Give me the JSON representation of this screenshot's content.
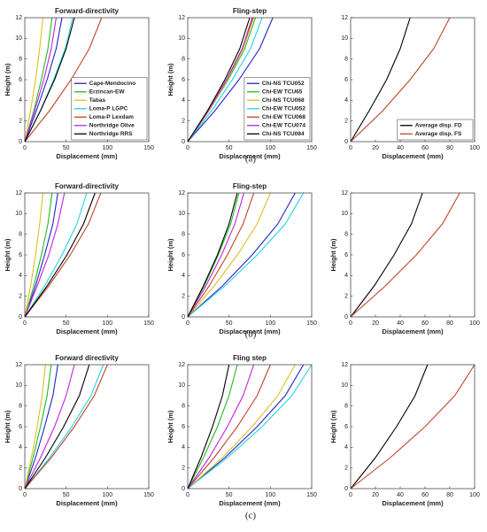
{
  "captions": [
    "(a)",
    "(b)",
    "(c)"
  ],
  "chart_data": [
    {
      "type": "line",
      "title": "Forward-directivity",
      "xlabel": "Displacement (mm)",
      "ylabel": "Height (m)",
      "xlim": [
        0,
        150
      ],
      "ylim": [
        0,
        12
      ],
      "xticks": [
        0,
        50,
        100,
        150
      ],
      "yticks": [
        0,
        2,
        4,
        6,
        8,
        10,
        12
      ],
      "legend": "lower right",
      "y": [
        0,
        3,
        6,
        9,
        12
      ],
      "series": [
        {
          "name": "Cape-Mendocino",
          "color": "#2323c8",
          "x": [
            0,
            14,
            27,
            38,
            45
          ]
        },
        {
          "name": "Erzincan-EW",
          "color": "#22bb22",
          "x": [
            0,
            11,
            20,
            28,
            33
          ]
        },
        {
          "name": "Tabas",
          "color": "#ddc022",
          "x": [
            0,
            7,
            13,
            18,
            22
          ]
        },
        {
          "name": "Loma-P LGPC",
          "color": "#22d4e4",
          "x": [
            0,
            19,
            35,
            49,
            58
          ]
        },
        {
          "name": "Loma-P Lexdam",
          "color": "#c04428",
          "x": [
            0,
            30,
            56,
            78,
            93
          ]
        },
        {
          "name": "Northridge Olive",
          "color": "#c022e0",
          "x": [
            0,
            12,
            23,
            32,
            38
          ]
        },
        {
          "name": "Northridge RRS",
          "color": "#000000",
          "x": [
            0,
            19,
            36,
            50,
            60
          ]
        }
      ]
    },
    {
      "type": "line",
      "title": "Fling-step",
      "xlabel": "Displacement (mm)",
      "ylabel": "Height (m)",
      "xlim": [
        0,
        150
      ],
      "ylim": [
        0,
        12
      ],
      "xticks": [
        0,
        50,
        100,
        150
      ],
      "yticks": [
        0,
        2,
        4,
        6,
        8,
        10,
        12
      ],
      "legend": "lower right",
      "y": [
        0,
        3,
        6,
        9,
        12
      ],
      "series": [
        {
          "name": "Chi-NS TCU052",
          "color": "#2323c8",
          "x": [
            0,
            33,
            62,
            87,
            103
          ]
        },
        {
          "name": "Chi-EW TCU65",
          "color": "#22bb22",
          "x": [
            0,
            26,
            49,
            69,
            82
          ]
        },
        {
          "name": "Chi-NS TCU068",
          "color": "#ddc022",
          "x": [
            0,
            26,
            48,
            67,
            80
          ]
        },
        {
          "name": "Chi-EW TCU052",
          "color": "#22d4e4",
          "x": [
            0,
            29,
            54,
            76,
            90
          ]
        },
        {
          "name": "Chi-EW TCU068",
          "color": "#c04428",
          "x": [
            0,
            25,
            47,
            66,
            79
          ]
        },
        {
          "name": "Chi-EW TCU074",
          "color": "#c022e0",
          "x": [
            0,
            25,
            47,
            66,
            78
          ]
        },
        {
          "name": "Chi-NS TCU084",
          "color": "#000000",
          "x": [
            0,
            24,
            45,
            63,
            75
          ]
        }
      ]
    },
    {
      "type": "line",
      "xlabel": "Displacement (mm)",
      "xlim": [
        0,
        100
      ],
      "ylim": [
        0,
        12
      ],
      "xticks": [
        0,
        20,
        40,
        60,
        80,
        100
      ],
      "yticks": [
        0,
        2,
        4,
        6,
        8,
        10,
        12
      ],
      "legend": "lower right",
      "y": [
        0,
        3,
        6,
        9,
        12
      ],
      "series": [
        {
          "name": "Average disp. FD",
          "color": "#000000",
          "x": [
            0,
            15,
            29,
            40,
            48
          ]
        },
        {
          "name": "Average disp. FS",
          "color": "#c04428",
          "x": [
            0,
            26,
            48,
            67,
            80
          ]
        }
      ]
    },
    {
      "type": "line",
      "title": "Forward-directivity",
      "xlabel": "Displacement (mm)",
      "ylabel": "Height (m)",
      "xlim": [
        0,
        150
      ],
      "ylim": [
        0,
        12
      ],
      "xticks": [
        0,
        50,
        100,
        150
      ],
      "yticks": [
        0,
        2,
        4,
        6,
        8,
        10,
        12
      ],
      "y": [
        0,
        3,
        6,
        9,
        12
      ],
      "series": [
        {
          "color": "#2323c8",
          "x": [
            0,
            13,
            24,
            34,
            40
          ]
        },
        {
          "color": "#22bb22",
          "x": [
            0,
            11,
            20,
            28,
            33
          ]
        },
        {
          "color": "#ddc022",
          "x": [
            0,
            7,
            13,
            18,
            22
          ]
        },
        {
          "color": "#22d4e4",
          "x": [
            0,
            24,
            45,
            63,
            75
          ]
        },
        {
          "color": "#c04428",
          "x": [
            0,
            29,
            55,
            77,
            92
          ]
        },
        {
          "color": "#c022e0",
          "x": [
            0,
            15,
            29,
            40,
            48
          ]
        },
        {
          "color": "#000000",
          "x": [
            0,
            27,
            51,
            71,
            85
          ]
        }
      ]
    },
    {
      "type": "line",
      "title": "Fling-step",
      "xlabel": "Displacement (mm)",
      "ylabel": "Height (m)",
      "xlim": [
        0,
        150
      ],
      "ylim": [
        0,
        12
      ],
      "xticks": [
        0,
        50,
        100,
        150
      ],
      "yticks": [
        0,
        2,
        4,
        6,
        8,
        10,
        12
      ],
      "y": [
        0,
        3,
        6,
        9,
        12
      ],
      "series": [
        {
          "color": "#2323c8",
          "x": [
            0,
            42,
            78,
            109,
            130
          ]
        },
        {
          "color": "#22bb22",
          "x": [
            0,
            20,
            37,
            52,
            62
          ]
        },
        {
          "color": "#ddc022",
          "x": [
            0,
            32,
            60,
            84,
            100
          ]
        },
        {
          "color": "#22d4e4",
          "x": [
            0,
            45,
            84,
            118,
            140
          ]
        },
        {
          "color": "#c04428",
          "x": [
            0,
            26,
            48,
            67,
            80
          ]
        },
        {
          "color": "#c022e0",
          "x": [
            0,
            22,
            41,
            57,
            68
          ]
        },
        {
          "color": "#000000",
          "x": [
            0,
            19,
            36,
            50,
            60
          ]
        }
      ]
    },
    {
      "type": "line",
      "xlabel": "Displacement (mm)",
      "ylabel": "Height (m)",
      "xlim": [
        0,
        100
      ],
      "ylim": [
        0,
        12
      ],
      "xticks": [
        0,
        20,
        40,
        60,
        80,
        100
      ],
      "yticks": [
        0,
        2,
        4,
        6,
        8,
        10,
        12
      ],
      "y": [
        0,
        3,
        6,
        9,
        12
      ],
      "series": [
        {
          "color": "#000000",
          "x": [
            0,
            19,
            35,
            49,
            58
          ]
        },
        {
          "color": "#c04428",
          "x": [
            0,
            28,
            53,
            74,
            88
          ]
        }
      ]
    },
    {
      "type": "line",
      "title": "Forward directivity",
      "xlabel": "Displacement (mm)",
      "ylabel": "Height (m)",
      "xlim": [
        0,
        150
      ],
      "ylim": [
        0,
        12
      ],
      "xticks": [
        0,
        50,
        100,
        150
      ],
      "yticks": [
        0,
        2,
        4,
        6,
        8,
        10,
        12
      ],
      "y": [
        0,
        3,
        6,
        9,
        12
      ],
      "series": [
        {
          "color": "#2323c8",
          "x": [
            0,
            13,
            24,
            34,
            40
          ]
        },
        {
          "color": "#22bb22",
          "x": [
            0,
            10,
            19,
            27,
            32
          ]
        },
        {
          "color": "#ddc022",
          "x": [
            0,
            8,
            15,
            21,
            25
          ]
        },
        {
          "color": "#22d4e4",
          "x": [
            0,
            30,
            57,
            80,
            95
          ]
        },
        {
          "color": "#c04428",
          "x": [
            0,
            32,
            60,
            84,
            100
          ]
        },
        {
          "color": "#c022e0",
          "x": [
            0,
            19,
            36,
            50,
            60
          ]
        },
        {
          "color": "#000000",
          "x": [
            0,
            25,
            47,
            66,
            78
          ]
        }
      ]
    },
    {
      "type": "line",
      "title": "Fling step",
      "xlabel": "Displacement (mm)",
      "ylabel": "Height (m)",
      "xlim": [
        0,
        150
      ],
      "ylim": [
        0,
        12
      ],
      "xticks": [
        0,
        50,
        100,
        150
      ],
      "yticks": [
        0,
        2,
        4,
        6,
        8,
        10,
        12
      ],
      "y": [
        0,
        3,
        6,
        9,
        12
      ],
      "series": [
        {
          "color": "#2323c8",
          "x": [
            0,
            45,
            84,
            118,
            140
          ]
        },
        {
          "color": "#22bb22",
          "x": [
            0,
            19,
            36,
            50,
            60
          ]
        },
        {
          "color": "#ddc022",
          "x": [
            0,
            42,
            78,
            109,
            130
          ]
        },
        {
          "color": "#22d4e4",
          "x": [
            0,
            48,
            90,
            126,
            150
          ]
        },
        {
          "color": "#c04428",
          "x": [
            0,
            32,
            60,
            84,
            100
          ]
        },
        {
          "color": "#c022e0",
          "x": [
            0,
            26,
            48,
            67,
            80
          ]
        },
        {
          "color": "#000000",
          "x": [
            0,
            16,
            30,
            42,
            50
          ]
        }
      ]
    },
    {
      "type": "line",
      "xlabel": "Displacement (mm)",
      "ylabel": "Height (m)",
      "xlim": [
        0,
        100
      ],
      "ylim": [
        0,
        12
      ],
      "xticks": [
        0,
        20,
        40,
        60,
        80,
        100
      ],
      "yticks": [
        0,
        2,
        4,
        6,
        8,
        10,
        12
      ],
      "y": [
        0,
        3,
        6,
        9,
        12
      ],
      "series": [
        {
          "color": "#000000",
          "x": [
            0,
            20,
            37,
            52,
            62
          ]
        },
        {
          "color": "#c04428",
          "x": [
            0,
            32,
            60,
            84,
            100
          ]
        }
      ]
    }
  ]
}
